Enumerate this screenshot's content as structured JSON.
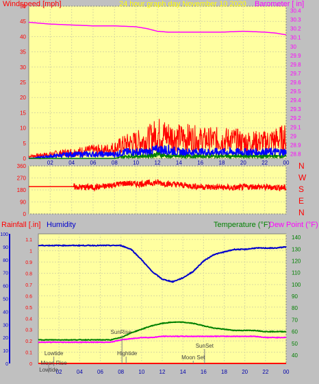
{
  "header": {
    "left_label": "Windspeed [mph]",
    "center_label": "24 hour graph day   November 10 2020",
    "right_label": "Barometer [ in]"
  },
  "wind_dir_labels": [
    "N",
    "W",
    "S",
    "E",
    "N"
  ],
  "lower_header": {
    "rain_label": "Rainfall [.in]",
    "humidity_label": "Humidity",
    "temp_label": "Temperature (°F)",
    "dew_label": "Dew Point (°F)"
  },
  "colors": {
    "plot_bg": "#ffffa0",
    "frame_bg": "#c0c0c0",
    "wind": "#ff0000",
    "gust": "#0000ff",
    "avg": "#008000",
    "baro": "#ff00ff",
    "humidity": "#0000cc",
    "temp": "#008000",
    "dew": "#ff00ff",
    "rain": "#ff0000"
  },
  "events": [
    {
      "label": "SunRise",
      "x": 8.1
    },
    {
      "label": "Hightide",
      "x": 8.5
    },
    {
      "label": "SunSet",
      "x": 16.1
    },
    {
      "label": "Moon Set",
      "x": 15.0
    },
    {
      "label": "Lowtide",
      "x": 1.5
    },
    {
      "label": "Moon Rise",
      "x": 1.5
    },
    {
      "label": "Lowtide",
      "x": 1.0
    }
  ],
  "chart_data": [
    {
      "type": "line",
      "name": "wind",
      "x_ticks": [
        "02",
        "04",
        "06",
        "08",
        "10",
        "12",
        "14",
        "16",
        "18",
        "20",
        "22",
        "00"
      ],
      "xlim": [
        0,
        24
      ],
      "left_axis": {
        "label": "Windspeed [mph]",
        "ticks": [
          0,
          5,
          10,
          15,
          20,
          25,
          30,
          35,
          40,
          45,
          50
        ],
        "lim": [
          0,
          50
        ]
      },
      "right_axis": {
        "label": "Barometer [ in]",
        "ticks": [
          "28.8",
          "28.9",
          "29",
          "29.1",
          "29.2",
          "29.3",
          "29.4",
          "29.5",
          "29.6",
          "29.7",
          "29.8",
          "29.9",
          "30",
          "30.1",
          "30.2",
          "30.3",
          "30.4"
        ],
        "lim": [
          28.75,
          30.45
        ]
      },
      "barometer": {
        "x": [
          0,
          2,
          4,
          6,
          8,
          10,
          11,
          12,
          13,
          14,
          16,
          18,
          20,
          22,
          23,
          24
        ],
        "y": [
          30.27,
          30.25,
          30.24,
          30.23,
          30.23,
          30.22,
          30.2,
          30.17,
          30.16,
          30.16,
          30.16,
          30.16,
          30.17,
          30.16,
          30.15,
          30.13
        ]
      },
      "wind_profile": {
        "x": [
          0,
          2,
          4,
          6,
          7,
          8,
          9,
          10,
          11,
          12,
          13,
          14,
          15,
          16,
          17,
          18,
          19,
          20,
          21,
          22,
          23,
          24
        ],
        "peak": [
          1,
          2,
          3,
          4,
          4,
          5,
          7,
          8,
          9,
          12,
          11,
          10,
          10,
          9,
          9,
          9,
          9,
          8,
          8,
          8,
          9,
          10
        ],
        "gust": [
          0,
          1,
          2,
          2,
          2,
          2,
          3,
          3,
          3,
          4,
          4,
          3,
          3,
          3,
          3,
          3,
          3,
          3,
          3,
          3,
          3,
          3
        ],
        "avg": [
          0,
          0,
          0,
          0,
          0,
          0,
          1,
          1,
          1,
          2,
          1,
          1,
          1,
          1,
          1,
          1,
          1,
          1,
          1,
          1,
          1,
          1
        ]
      }
    },
    {
      "type": "line",
      "name": "wind direction",
      "left_axis": {
        "ticks": [
          0,
          90,
          180,
          270,
          360
        ],
        "lim": [
          0,
          360
        ]
      },
      "direction": {
        "x": [
          0,
          2,
          4,
          5,
          6,
          7,
          8,
          9,
          10,
          11,
          12,
          13,
          14,
          15,
          16,
          17,
          18,
          19,
          20,
          21,
          22,
          23,
          24
        ],
        "y": [
          205,
          205,
          205,
          200,
          200,
          205,
          220,
          230,
          225,
          230,
          235,
          225,
          220,
          210,
          205,
          200,
          200,
          195,
          200,
          205,
          200,
          200,
          195
        ]
      }
    },
    {
      "type": "line",
      "name": "humidity-temp",
      "left_axis": {
        "label": "Rainfall [.in]",
        "ticks": [
          0,
          10,
          20,
          30,
          40,
          50,
          60,
          70,
          80,
          90,
          100
        ],
        "lim": [
          0,
          100
        ]
      },
      "rain_axis": {
        "ticks": [
          "0",
          "0.1",
          "0.2",
          "0.3",
          "0.4",
          "0.5",
          "0.6",
          "0.7",
          "0.8",
          "0.9",
          "1",
          "1.1"
        ],
        "lim": [
          0,
          1.15
        ]
      },
      "right_axis": {
        "ticks": [
          40,
          50,
          60,
          70,
          80,
          90,
          100,
          110,
          120,
          130,
          140
        ],
        "lim": [
          33,
          143
        ]
      },
      "humidity": {
        "x": [
          0,
          2,
          4,
          6,
          7,
          8,
          9,
          10,
          11,
          12,
          13,
          14,
          15,
          16,
          17,
          18,
          19,
          20,
          21,
          22,
          23,
          24
        ],
        "y": [
          91,
          91,
          91,
          91,
          91,
          91,
          88,
          80,
          71,
          65,
          63,
          66,
          71,
          79,
          84,
          86,
          88,
          88,
          89,
          89,
          89,
          90
        ]
      },
      "temperature": {
        "x": [
          0,
          2,
          4,
          6,
          7,
          8,
          9,
          10,
          11,
          12,
          13,
          14,
          15,
          16,
          17,
          18,
          19,
          20,
          21,
          22,
          23,
          24
        ],
        "y": [
          53,
          53,
          53,
          53,
          53,
          55,
          59,
          62,
          65,
          67,
          68,
          68,
          67,
          65,
          63,
          62,
          61,
          61,
          61,
          60,
          60,
          60
        ]
      },
      "dewpoint": {
        "x": [
          0,
          2,
          4,
          6,
          7,
          8,
          9,
          10,
          11,
          12,
          13,
          14,
          15,
          16,
          17,
          18,
          19,
          20,
          21,
          22,
          23,
          24
        ],
        "y": [
          51,
          51,
          51,
          51,
          51,
          53,
          54,
          55,
          55,
          56,
          56,
          56,
          56,
          56,
          56,
          56,
          56,
          56,
          56,
          55,
          55,
          55
        ]
      },
      "rainfall": {
        "x": [
          0,
          24
        ],
        "y": [
          0,
          0
        ]
      }
    }
  ]
}
